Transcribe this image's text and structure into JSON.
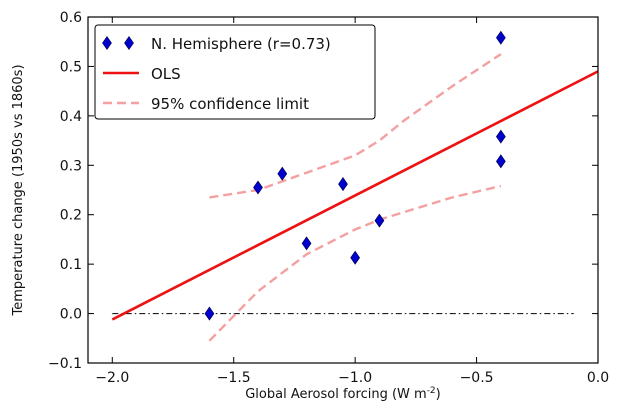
{
  "chart_data": {
    "type": "scatter",
    "title": "",
    "xlabel": "Global Aerosol forcing (W m",
    "xlabel_superscript": "-2",
    "ylabel": "Temperature change (1950s vs 1860s)",
    "xlim": [
      -2.1,
      0.0
    ],
    "ylim": [
      -0.1,
      0.6
    ],
    "xticks": [
      -2.0,
      -1.5,
      -1.0,
      -0.5,
      0.0
    ],
    "xtick_labels": [
      "−2.0",
      "−1.5",
      "−1.0",
      "−0.5",
      "0.0"
    ],
    "yticks": [
      -0.1,
      0.0,
      0.1,
      0.2,
      0.3,
      0.4,
      0.5,
      0.6
    ],
    "ytick_labels": [
      "−0.1",
      "0.0",
      "0.1",
      "0.2",
      "0.3",
      "0.4",
      "0.5",
      "0.6"
    ],
    "grid": false,
    "legend_position": "top-left",
    "legend": [
      {
        "label": "N. Hemisphere (r=0.73)",
        "style": "diamond-marker",
        "color": "#0000cc"
      },
      {
        "label": "OLS",
        "style": "solid-line",
        "color": "#ee1111"
      },
      {
        "label": " 95% confidence limit",
        "style": "dashed-line",
        "color": "#f4a0a0"
      }
    ],
    "series": [
      {
        "name": "N. Hemisphere (r=0.73)",
        "kind": "scatter",
        "marker": "diamond",
        "color": "#0000cc",
        "points": [
          {
            "x": -1.6,
            "y": 0.0
          },
          {
            "x": -1.4,
            "y": 0.255
          },
          {
            "x": -1.3,
            "y": 0.283
          },
          {
            "x": -1.2,
            "y": 0.142
          },
          {
            "x": -1.05,
            "y": 0.262
          },
          {
            "x": -1.0,
            "y": 0.113
          },
          {
            "x": -0.9,
            "y": 0.188
          },
          {
            "x": -0.4,
            "y": 0.558
          },
          {
            "x": -0.4,
            "y": 0.358
          },
          {
            "x": -0.4,
            "y": 0.308
          }
        ]
      },
      {
        "name": "OLS",
        "kind": "line",
        "style": "solid",
        "color": "#ee1111",
        "points": [
          {
            "x": -2.0,
            "y": -0.012
          },
          {
            "x": 0.0,
            "y": 0.49
          }
        ]
      },
      {
        "name": " 95% confidence limit",
        "kind": "line",
        "style": "dashed",
        "color": "#f4a0a0",
        "points": [
          {
            "x": -1.6,
            "y": 0.235
          },
          {
            "x": -1.4,
            "y": 0.25
          },
          {
            "x": -1.2,
            "y": 0.285
          },
          {
            "x": -1.0,
            "y": 0.32
          },
          {
            "x": -0.9,
            "y": 0.35
          },
          {
            "x": -0.8,
            "y": 0.39
          },
          {
            "x": -0.6,
            "y": 0.46
          },
          {
            "x": -0.4,
            "y": 0.525
          }
        ]
      },
      {
        "name": "",
        "kind": "line",
        "style": "dashed",
        "color": "#f4a0a0",
        "points": [
          {
            "x": -1.6,
            "y": -0.055
          },
          {
            "x": -1.5,
            "y": -0.005
          },
          {
            "x": -1.4,
            "y": 0.045
          },
          {
            "x": -1.2,
            "y": 0.12
          },
          {
            "x": -1.0,
            "y": 0.17
          },
          {
            "x": -0.9,
            "y": 0.19
          },
          {
            "x": -0.8,
            "y": 0.205
          },
          {
            "x": -0.6,
            "y": 0.235
          },
          {
            "x": -0.4,
            "y": 0.258
          }
        ]
      }
    ],
    "reference_line": {
      "y": 0.0,
      "x_from": -2.0,
      "x_to": -0.1,
      "style": "dash-dot",
      "color": "#000000"
    }
  }
}
